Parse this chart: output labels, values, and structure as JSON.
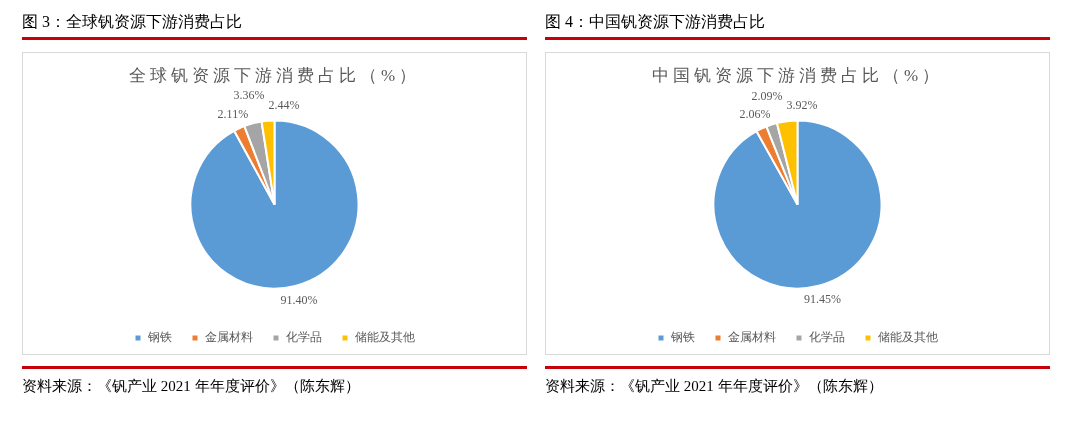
{
  "chart_data": [
    {
      "type": "pie",
      "title": "图 3：全球钒资源下游消费占比",
      "subtitle": "全球钒资源下游消费占比（%）",
      "categories": [
        "钢铁",
        "金属材料",
        "化学品",
        "储能及其他"
      ],
      "values": [
        91.4,
        2.11,
        3.36,
        2.44
      ],
      "colors": [
        "#5b9bd5",
        "#ed7d31",
        "#a5a5a5",
        "#ffc000"
      ],
      "value_labels": [
        "91.40%",
        "2.11%",
        "3.36%",
        "2.44%"
      ],
      "legend": "bottom",
      "annotations": [
        "资料来源：《钒产业 2021 年年度评价》（陈东辉）"
      ]
    },
    {
      "type": "pie",
      "title": "图 4：中国钒资源下游消费占比",
      "subtitle": "中国钒资源下游消费占比（%）",
      "categories": [
        "钢铁",
        "金属材料",
        "化学品",
        "储能及其他"
      ],
      "values": [
        91.45,
        2.06,
        2.09,
        3.92
      ],
      "colors": [
        "#5b9bd5",
        "#ed7d31",
        "#a5a5a5",
        "#ffc000"
      ],
      "value_labels": [
        "91.45%",
        "2.06%",
        "2.09%",
        "3.92%"
      ],
      "legend": "bottom",
      "annotations": [
        "资料来源：《钒产业 2021 年年度评价》（陈东辉）"
      ]
    }
  ]
}
